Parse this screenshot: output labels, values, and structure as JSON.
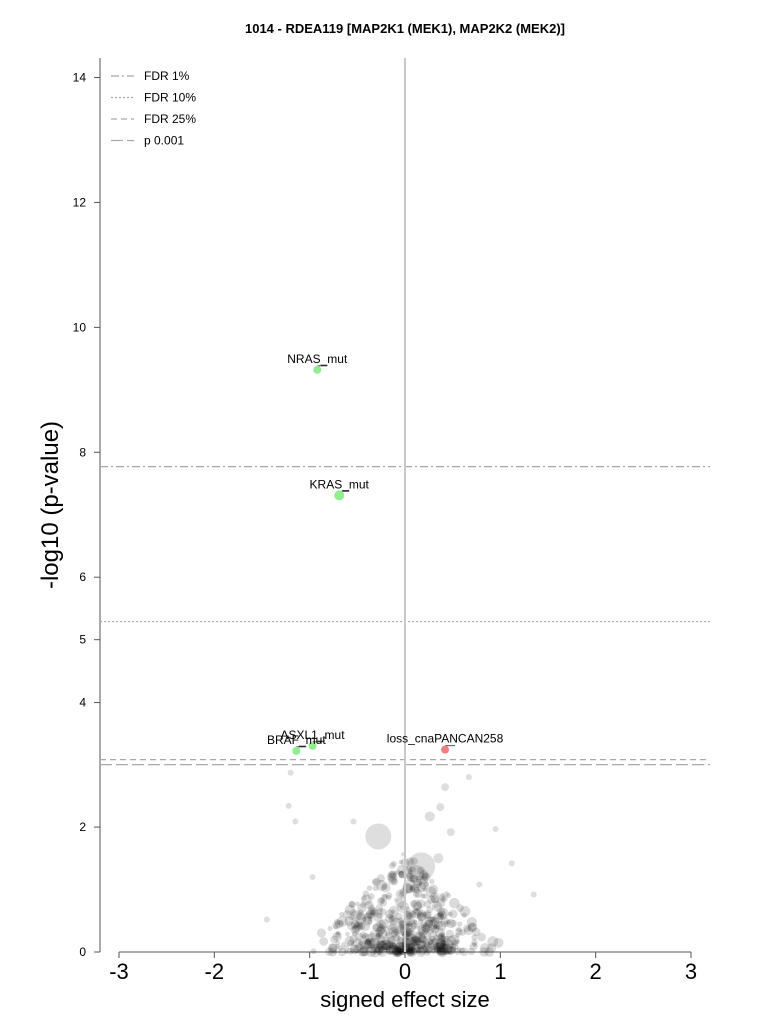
{
  "chart_data": {
    "type": "scatter",
    "title": "1014 - RDEA119 [MAP2K1 (MEK1), MAP2K2 (MEK2)]",
    "xlabel": "signed effect size",
    "ylabel": "-log10 (p-value)",
    "xlim": [
      -3.2,
      3.2
    ],
    "ylim": [
      0,
      14.4
    ],
    "xticks": [
      "-3",
      "-2",
      "-1",
      "0",
      "1",
      "2",
      "3"
    ],
    "xtick_values": [
      -3,
      -2,
      -1,
      0,
      1,
      2,
      3
    ],
    "yticks": [
      "0",
      "2",
      "4",
      "5",
      "6",
      "8",
      "10",
      "12",
      "14"
    ],
    "ytick_values": [
      0,
      2,
      3.993,
      5.0,
      6,
      8,
      10,
      12,
      14
    ],
    "zero_line_x": 0,
    "thresholds": [
      {
        "name": "FDR 1%",
        "y": 7.77,
        "style": "dashdot"
      },
      {
        "name": "FDR 10%",
        "y": 5.29,
        "style": "dotted"
      },
      {
        "name": "FDR 25%",
        "y": 3.08,
        "style": "dashed"
      },
      {
        "name": "p 0.001",
        "y": 3.0,
        "style": "longdash"
      }
    ],
    "colors": {
      "sensitive": "#90ee90",
      "resistant": "#f08080",
      "background_point": "#000000",
      "threshold_line": "#a9a9a9",
      "zero_line": "#c8c8c8"
    },
    "highlighted": [
      {
        "label": "NRAS_mut",
        "x": -0.92,
        "y": 9.32,
        "color": "#90ee90",
        "size": 4
      },
      {
        "label": "KRAS_mut",
        "x": -0.69,
        "y": 7.31,
        "color": "#90ee90",
        "size": 5
      },
      {
        "label": "ASXL1_mut",
        "x": -0.97,
        "y": 3.3,
        "color": "#90ee90",
        "size": 4
      },
      {
        "label": "BRAF_mut",
        "x": -1.14,
        "y": 3.22,
        "color": "#90ee90",
        "size": 4
      },
      {
        "label": "loss_cnaPANCAN258",
        "x": 0.42,
        "y": 3.24,
        "color": "#f08080",
        "size": 4
      }
    ],
    "background_points": [
      {
        "x": -0.28,
        "y": 1.85,
        "size": 13
      },
      {
        "x": 0.17,
        "y": 1.37,
        "size": 14
      },
      {
        "x": 0.11,
        "y": 1.25,
        "size": 9
      },
      {
        "x": 0.35,
        "y": 1.5,
        "size": 5
      },
      {
        "x": 0.26,
        "y": 2.17,
        "size": 5
      },
      {
        "x": 0.37,
        "y": 2.32,
        "size": 4
      },
      {
        "x": 0.42,
        "y": 2.64,
        "size": 4
      },
      {
        "x": 0.67,
        "y": 2.8,
        "size": 3
      },
      {
        "x": 0.48,
        "y": 1.92,
        "size": 4
      },
      {
        "x": 0.95,
        "y": 1.97,
        "size": 3
      },
      {
        "x": -1.22,
        "y": 2.34,
        "size": 3
      },
      {
        "x": -1.15,
        "y": 2.09,
        "size": 3
      },
      {
        "x": -1.2,
        "y": 2.87,
        "size": 3
      },
      {
        "x": -0.54,
        "y": 2.09,
        "size": 3
      },
      {
        "x": -1.45,
        "y": 0.52,
        "size": 3
      },
      {
        "x": -0.97,
        "y": 1.2,
        "size": 3
      },
      {
        "x": 1.12,
        "y": 1.42,
        "size": 3
      },
      {
        "x": 1.35,
        "y": 0.92,
        "size": 3
      },
      {
        "x": 0.78,
        "y": 1.08,
        "size": 3
      },
      {
        "x": 0.02,
        "y": 0.35,
        "size": 7
      },
      {
        "x": -0.08,
        "y": 0.42,
        "size": 8
      },
      {
        "x": 0.06,
        "y": 0.15,
        "size": 9
      },
      {
        "x": -0.02,
        "y": 0.72,
        "size": 6
      },
      {
        "x": 0.05,
        "y": 1.05,
        "size": 7
      }
    ],
    "background_cloud": {
      "count": 520,
      "x_center": 0.0,
      "x_spread": 0.38,
      "y_max": 1.6
    },
    "legend_position": "top-left"
  }
}
